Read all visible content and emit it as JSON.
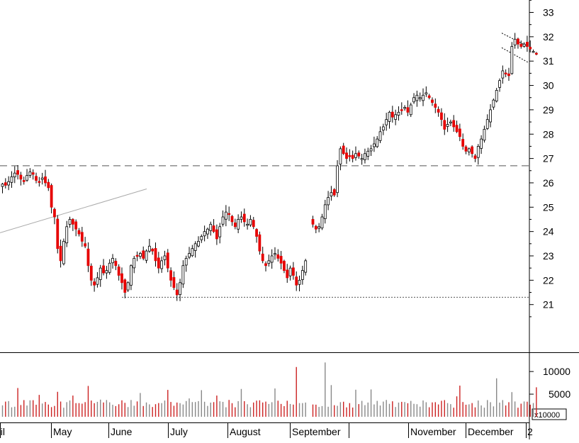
{
  "chart_data": {
    "type": "candlestick",
    "title": "",
    "xlabel": "",
    "ylabel": "",
    "price_axis": {
      "ylim": [
        20.3,
        33.5
      ],
      "ticks": [
        21,
        22,
        23,
        24,
        25,
        26,
        27,
        28,
        29,
        30,
        31,
        32,
        33
      ],
      "position": "right"
    },
    "volume_axis": {
      "ticks": [
        5000,
        10000
      ],
      "unit_label": "x10000",
      "ylim": [
        0,
        13000
      ]
    },
    "months": [
      "April",
      "May",
      "June",
      "July",
      "August",
      "September",
      "November",
      "December"
    ],
    "truncated_right_label": "2",
    "colors": {
      "up": "#ffffff",
      "up_outline": "#000000",
      "down": "#e60000",
      "volume_down": "#cc2222",
      "volume_up": "#888888",
      "ref_line": "#555555",
      "trendline": "#aaaaaa"
    },
    "reference_lines": [
      {
        "name": "resistance",
        "y": 26.7,
        "style": "dashed"
      },
      {
        "name": "support",
        "y": 21.3,
        "style": "dotted"
      }
    ],
    "series": [
      {
        "name": "price",
        "closes": [
          25.95,
          25.9,
          26.05,
          26.25,
          26.4,
          26.35,
          26.15,
          26.05,
          26.3,
          26.45,
          26.35,
          26.1,
          26.05,
          26.2,
          26.0,
          25.8,
          25.0,
          24.6,
          23.3,
          22.8,
          23.6,
          24.2,
          24.5,
          24.3,
          24.1,
          23.9,
          23.6,
          23.4,
          22.6,
          22.0,
          21.8,
          22.1,
          22.5,
          22.3,
          22.4,
          22.7,
          22.9,
          22.6,
          22.2,
          21.9,
          21.5,
          21.9,
          22.6,
          22.9,
          23.0,
          23.1,
          22.9,
          23.2,
          23.4,
          23.2,
          22.8,
          22.5,
          22.8,
          23.0,
          22.5,
          22.0,
          21.7,
          21.4,
          21.9,
          22.6,
          22.9,
          23.1,
          23.3,
          23.5,
          23.6,
          23.8,
          24.0,
          24.1,
          24.3,
          24.0,
          23.7,
          24.2,
          24.6,
          24.8,
          24.7,
          24.4,
          24.2,
          24.5,
          24.6,
          24.4,
          24.3,
          24.5,
          24.2,
          23.8,
          23.2,
          22.8,
          22.6,
          22.8,
          23.0,
          23.1,
          22.9,
          22.7,
          22.4,
          22.1,
          22.5,
          22.2,
          21.8,
          22.0,
          22.4,
          22.8,
          24.3,
          24.1,
          24.2,
          24.6,
          25.1,
          25.4,
          25.6,
          25.5,
          26.7,
          27.4,
          27.2,
          27.0,
          27.1,
          27.0,
          27.2,
          27.1,
          27.0,
          27.2,
          27.3,
          27.4,
          27.6,
          27.8,
          28.1,
          28.3,
          28.6,
          28.9,
          28.7,
          28.8,
          28.9,
          29.0,
          29.1,
          28.9,
          29.2,
          29.5,
          29.6,
          29.5,
          29.6,
          29.7,
          29.5,
          29.3,
          29.1,
          28.9,
          28.6,
          28.2,
          28.4,
          28.5,
          28.3,
          28.1,
          27.9,
          27.5,
          27.3,
          27.4,
          27.2,
          27.0,
          27.5,
          27.8,
          28.2,
          28.6,
          29.0,
          29.4,
          29.8,
          30.2,
          30.6,
          30.5,
          30.4,
          31.6,
          31.9,
          31.7,
          31.6,
          31.7,
          31.6,
          31.5,
          31.4,
          31.3
        ]
      }
    ]
  }
}
